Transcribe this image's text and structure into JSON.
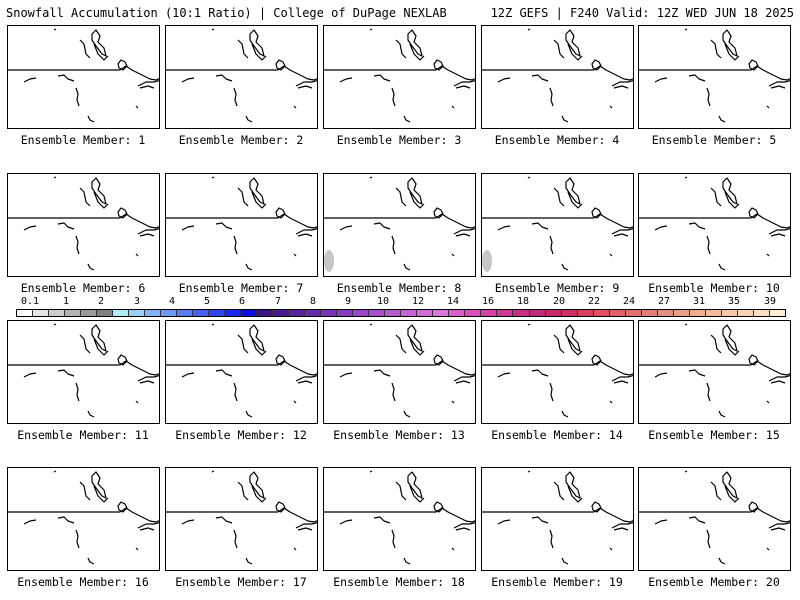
{
  "header": {
    "title": "Snowfall Accumulation (10:1 Ratio) | College of DuPage NEXLAB",
    "run_info": "12Z GEFS | F240 Valid: 12Z WED JUN 18 2025"
  },
  "members": [
    {
      "label": "Ensemble Member: 1",
      "snow_patch": false
    },
    {
      "label": "Ensemble Member: 2",
      "snow_patch": false
    },
    {
      "label": "Ensemble Member: 3",
      "snow_patch": false
    },
    {
      "label": "Ensemble Member: 4",
      "snow_patch": false
    },
    {
      "label": "Ensemble Member: 5",
      "snow_patch": false
    },
    {
      "label": "Ensemble Member: 6",
      "snow_patch": false
    },
    {
      "label": "Ensemble Member: 7",
      "snow_patch": false
    },
    {
      "label": "Ensemble Member: 8",
      "snow_patch": true
    },
    {
      "label": "Ensemble Member: 9",
      "snow_patch": true
    },
    {
      "label": "Ensemble Member: 10",
      "snow_patch": false
    },
    {
      "label": "Ensemble Member: 11",
      "snow_patch": false
    },
    {
      "label": "Ensemble Member: 12",
      "snow_patch": false
    },
    {
      "label": "Ensemble Member: 13",
      "snow_patch": false
    },
    {
      "label": "Ensemble Member: 14",
      "snow_patch": false
    },
    {
      "label": "Ensemble Member: 15",
      "snow_patch": false
    },
    {
      "label": "Ensemble Member: 16",
      "snow_patch": false
    },
    {
      "label": "Ensemble Member: 17",
      "snow_patch": false
    },
    {
      "label": "Ensemble Member: 18",
      "snow_patch": false
    },
    {
      "label": "Ensemble Member: 19",
      "snow_patch": false
    },
    {
      "label": "Ensemble Member: 20",
      "snow_patch": false
    }
  ],
  "color_scale": {
    "labels": [
      "0.1",
      "1",
      "2",
      "3",
      "4",
      "5",
      "6",
      "7",
      "8",
      "9",
      "10",
      "12",
      "14",
      "16",
      "18",
      "20",
      "22",
      "24",
      "27",
      "31",
      "35",
      "39"
    ],
    "colors": [
      "#ffffff",
      "#e6e6e6",
      "#cccccc",
      "#b3b3b3",
      "#999999",
      "#808080",
      "#b0ecf5",
      "#9ad0f5",
      "#85b4f5",
      "#6f98f5",
      "#5a7cf5",
      "#4460f5",
      "#2e44f5",
      "#1a28f5",
      "#0a10e0",
      "#3a1480",
      "#4a1a90",
      "#5a22a0",
      "#6a2ab0",
      "#7a32b8",
      "#8a3cc0",
      "#9a46c8",
      "#a850cc",
      "#b65ad0",
      "#c464d4",
      "#d06ed8",
      "#d878d8",
      "#d860c8",
      "#d850b8",
      "#d840a8",
      "#d03898",
      "#c83088",
      "#c02878",
      "#c82868",
      "#d03060",
      "#d84060",
      "#e05060",
      "#e06068",
      "#e07070",
      "#e08078",
      "#e09080",
      "#e8a088",
      "#f0b090",
      "#f0bc9c",
      "#f4c8a8",
      "#f8d4b4",
      "#fce0c4",
      "#fcecd8"
    ]
  }
}
